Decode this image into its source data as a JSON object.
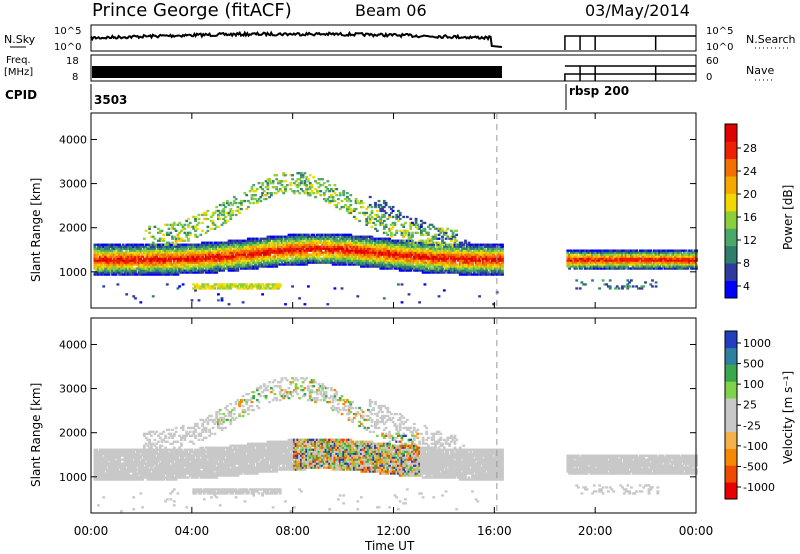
{
  "header": {
    "station": "Prince George (fitACF)",
    "beam": "Beam 06",
    "date": "03/May/2014"
  },
  "top_panels": {
    "nsky_label": "N.Sky",
    "nsky_ticks": [
      "10^5",
      "10^0"
    ],
    "nsearch_label": "N.Search",
    "nsearch_ticks": [
      "10^5",
      "10^0"
    ],
    "freq_label_1": "Freq.",
    "freq_label_2": "[MHz]",
    "freq_ticks": [
      "18",
      "8"
    ],
    "nave_label": "Nave",
    "nave_ticks": [
      "60",
      "0"
    ],
    "cpid_label": "CPID",
    "cpid_values": [
      "3503",
      "rbsp",
      "200"
    ]
  },
  "colors": {
    "power": [
      "#0000ff",
      "#2e3aa0",
      "#2f7d6a",
      "#4aa86a",
      "#8ccf3a",
      "#f0d800",
      "#f6a800",
      "#f37000",
      "#ef2000",
      "#e00000"
    ],
    "velocity": [
      "#e80000",
      "#f04a00",
      "#f58a00",
      "#f5b24a",
      "#c8c8c8",
      "#c8c8c8",
      "#7fd34a",
      "#3aa84a",
      "#2e7fa0",
      "#1f3fc0"
    ]
  },
  "chart_data": [
    {
      "type": "heatmap",
      "name_axis": "Power",
      "xlabel": "Time UT",
      "ylabel": "Slant Range [km]",
      "xlim": [
        0,
        24
      ],
      "ylim": [
        180,
        4600
      ],
      "x_ticks": [
        "00:00",
        "04:00",
        "08:00",
        "12:00",
        "16:00",
        "20:00",
        "00:00"
      ],
      "y_ticks": [
        "1000",
        "2000",
        "3000",
        "4000"
      ],
      "colorbar_label": "Power [dB]",
      "colorbar_ticks": [
        "4",
        "8",
        "12",
        "16",
        "20",
        "24",
        "28"
      ],
      "data_gap_hours": [
        16.3,
        18.8
      ],
      "dashed_marker_hour": 16.1
    },
    {
      "type": "heatmap",
      "name_axis": "Velocity",
      "xlabel": "Time UT",
      "ylabel": "Slant Range [km]",
      "xlim": [
        0,
        24
      ],
      "ylim": [
        180,
        4600
      ],
      "x_ticks": [
        "00:00",
        "04:00",
        "08:00",
        "12:00",
        "16:00",
        "20:00",
        "00:00"
      ],
      "y_ticks": [
        "1000",
        "2000",
        "3000",
        "4000"
      ],
      "colorbar_label": "Velocity [m s⁻¹]",
      "colorbar_ticks": [
        "1000",
        "500",
        "100",
        "25",
        "-25",
        "-100",
        "-500",
        "-1000"
      ],
      "data_gap_hours": [
        16.3,
        18.8
      ],
      "dashed_marker_hour": 16.1
    }
  ]
}
